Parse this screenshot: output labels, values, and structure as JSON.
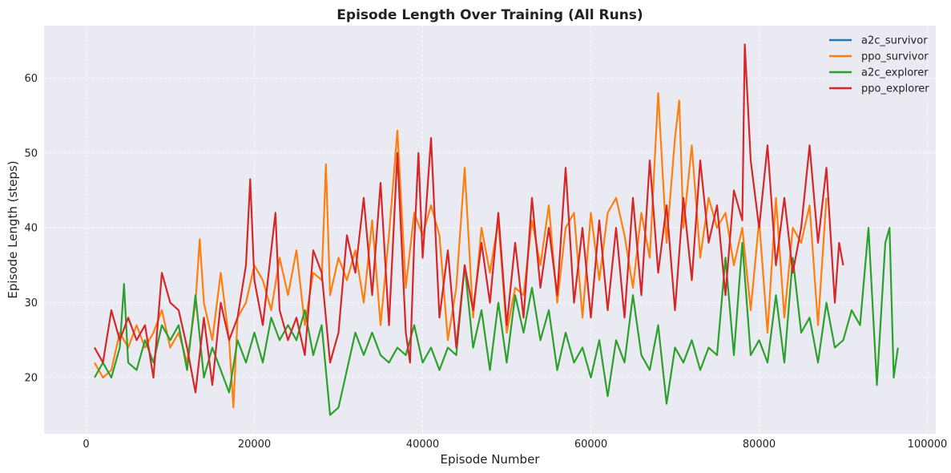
{
  "chart_data": {
    "type": "line",
    "title": "Episode Length Over Training (All Runs)",
    "xlabel": "Episode Number",
    "ylabel": "Episode Length (steps)",
    "xlim": [
      -5000,
      101000
    ],
    "ylim": [
      12.5,
      67
    ],
    "xticks": [
      0,
      20000,
      40000,
      60000,
      80000,
      100000
    ],
    "xtick_labels": [
      "0",
      "20000",
      "40000",
      "60000",
      "80000",
      "100000"
    ],
    "yticks": [
      20,
      30,
      40,
      50,
      60
    ],
    "ytick_labels": [
      "20",
      "30",
      "40",
      "50",
      "60"
    ],
    "grid": true,
    "legend_position": "top-right",
    "series": [
      {
        "name": "a2c_survivor",
        "color": "#1f77b4",
        "points": []
      },
      {
        "name": "ppo_survivor",
        "color": "#ff7f0e",
        "points": [
          [
            1000,
            22
          ],
          [
            2000,
            20
          ],
          [
            3000,
            21
          ],
          [
            4000,
            26
          ],
          [
            5000,
            24
          ],
          [
            6000,
            27
          ],
          [
            7000,
            24
          ],
          [
            8000,
            26
          ],
          [
            9000,
            29
          ],
          [
            10000,
            24
          ],
          [
            11000,
            26
          ],
          [
            12000,
            22
          ],
          [
            13000,
            30
          ],
          [
            13500,
            38.5
          ],
          [
            14000,
            30
          ],
          [
            15000,
            25
          ],
          [
            16000,
            34
          ],
          [
            17000,
            25
          ],
          [
            17500,
            16
          ],
          [
            18000,
            28
          ],
          [
            19000,
            30
          ],
          [
            20000,
            35
          ],
          [
            21000,
            33
          ],
          [
            22000,
            29
          ],
          [
            23000,
            36
          ],
          [
            24000,
            31
          ],
          [
            25000,
            37
          ],
          [
            26000,
            27
          ],
          [
            27000,
            34
          ],
          [
            28000,
            33
          ],
          [
            28500,
            48.5
          ],
          [
            29000,
            31
          ],
          [
            30000,
            36
          ],
          [
            31000,
            33
          ],
          [
            32000,
            37
          ],
          [
            33000,
            30
          ],
          [
            34000,
            41
          ],
          [
            35000,
            27
          ],
          [
            36000,
            39
          ],
          [
            37000,
            53
          ],
          [
            38000,
            32
          ],
          [
            39000,
            42
          ],
          [
            40000,
            39
          ],
          [
            41000,
            43
          ],
          [
            42000,
            39
          ],
          [
            43000,
            25
          ],
          [
            44000,
            32
          ],
          [
            45000,
            48
          ],
          [
            46000,
            28
          ],
          [
            47000,
            40
          ],
          [
            48000,
            34
          ],
          [
            49000,
            41
          ],
          [
            50000,
            26
          ],
          [
            51000,
            32
          ],
          [
            52000,
            31
          ],
          [
            53000,
            41
          ],
          [
            54000,
            35
          ],
          [
            55000,
            43
          ],
          [
            56000,
            30
          ],
          [
            57000,
            40
          ],
          [
            58000,
            42
          ],
          [
            59000,
            28
          ],
          [
            60000,
            42
          ],
          [
            61000,
            33
          ],
          [
            62000,
            42
          ],
          [
            63000,
            44
          ],
          [
            64000,
            39
          ],
          [
            65000,
            32
          ],
          [
            66000,
            42
          ],
          [
            67000,
            36
          ],
          [
            68000,
            58
          ],
          [
            69000,
            38
          ],
          [
            70000,
            52
          ],
          [
            70500,
            57
          ],
          [
            71000,
            40
          ],
          [
            72000,
            51
          ],
          [
            73000,
            36
          ],
          [
            74000,
            44
          ],
          [
            75000,
            40
          ],
          [
            76000,
            42
          ],
          [
            77000,
            35
          ],
          [
            78000,
            40
          ],
          [
            79000,
            29
          ],
          [
            80000,
            41
          ],
          [
            81000,
            26
          ],
          [
            82000,
            44
          ],
          [
            83000,
            28
          ],
          [
            84000,
            40
          ],
          [
            85000,
            38
          ],
          [
            86000,
            43
          ],
          [
            87000,
            27
          ],
          [
            88000,
            44
          ]
        ]
      },
      {
        "name": "a2c_explorer",
        "color": "#2ca02c",
        "points": [
          [
            1000,
            20
          ],
          [
            2000,
            22
          ],
          [
            3000,
            20
          ],
          [
            4000,
            24
          ],
          [
            4500,
            32.5
          ],
          [
            5000,
            22
          ],
          [
            6000,
            21
          ],
          [
            7000,
            25
          ],
          [
            8000,
            22
          ],
          [
            9000,
            27
          ],
          [
            10000,
            25
          ],
          [
            11000,
            27
          ],
          [
            12000,
            21
          ],
          [
            13000,
            31
          ],
          [
            14000,
            20
          ],
          [
            15000,
            24
          ],
          [
            16000,
            21
          ],
          [
            17000,
            18
          ],
          [
            18000,
            25
          ],
          [
            19000,
            22
          ],
          [
            20000,
            26
          ],
          [
            21000,
            22
          ],
          [
            22000,
            28
          ],
          [
            23000,
            25
          ],
          [
            24000,
            27
          ],
          [
            25000,
            25
          ],
          [
            26000,
            29
          ],
          [
            27000,
            23
          ],
          [
            28000,
            27
          ],
          [
            29000,
            15
          ],
          [
            30000,
            16
          ],
          [
            31000,
            21
          ],
          [
            32000,
            26
          ],
          [
            33000,
            23
          ],
          [
            34000,
            26
          ],
          [
            35000,
            23
          ],
          [
            36000,
            22
          ],
          [
            37000,
            24
          ],
          [
            38000,
            23
          ],
          [
            39000,
            27
          ],
          [
            40000,
            22
          ],
          [
            41000,
            24
          ],
          [
            42000,
            21
          ],
          [
            43000,
            24
          ],
          [
            44000,
            23
          ],
          [
            45000,
            35
          ],
          [
            46000,
            24
          ],
          [
            47000,
            29
          ],
          [
            48000,
            21
          ],
          [
            49000,
            30
          ],
          [
            50000,
            22
          ],
          [
            51000,
            31
          ],
          [
            52000,
            26
          ],
          [
            53000,
            32
          ],
          [
            54000,
            25
          ],
          [
            55000,
            29
          ],
          [
            56000,
            21
          ],
          [
            57000,
            26
          ],
          [
            58000,
            22
          ],
          [
            59000,
            24
          ],
          [
            60000,
            20
          ],
          [
            61000,
            25
          ],
          [
            62000,
            17.5
          ],
          [
            63000,
            25
          ],
          [
            64000,
            22
          ],
          [
            65000,
            31
          ],
          [
            66000,
            23
          ],
          [
            67000,
            21
          ],
          [
            68000,
            27
          ],
          [
            69000,
            16.5
          ],
          [
            70000,
            24
          ],
          [
            71000,
            22
          ],
          [
            72000,
            25
          ],
          [
            73000,
            21
          ],
          [
            74000,
            24
          ],
          [
            75000,
            23
          ],
          [
            76000,
            36
          ],
          [
            77000,
            23
          ],
          [
            78000,
            38
          ],
          [
            79000,
            23
          ],
          [
            80000,
            25
          ],
          [
            81000,
            22
          ],
          [
            82000,
            31
          ],
          [
            83000,
            22
          ],
          [
            84000,
            36
          ],
          [
            85000,
            26
          ],
          [
            86000,
            28
          ],
          [
            87000,
            22
          ],
          [
            88000,
            30
          ],
          [
            89000,
            24
          ],
          [
            90000,
            25
          ],
          [
            91000,
            29
          ],
          [
            92000,
            27
          ],
          [
            93000,
            40
          ],
          [
            94000,
            19
          ],
          [
            95000,
            38
          ],
          [
            95500,
            40
          ],
          [
            96000,
            20
          ],
          [
            96500,
            24
          ]
        ]
      },
      {
        "name": "ppo_explorer",
        "color": "#d62728",
        "points": [
          [
            1000,
            24
          ],
          [
            2000,
            22
          ],
          [
            3000,
            29
          ],
          [
            4000,
            25
          ],
          [
            5000,
            28
          ],
          [
            6000,
            25
          ],
          [
            7000,
            27
          ],
          [
            8000,
            20
          ],
          [
            9000,
            34
          ],
          [
            10000,
            30
          ],
          [
            11000,
            29
          ],
          [
            12000,
            24
          ],
          [
            13000,
            18
          ],
          [
            14000,
            28
          ],
          [
            15000,
            19
          ],
          [
            16000,
            30
          ],
          [
            17000,
            25
          ],
          [
            18000,
            28
          ],
          [
            19000,
            35
          ],
          [
            19500,
            46.5
          ],
          [
            20000,
            33
          ],
          [
            21000,
            27
          ],
          [
            22000,
            37
          ],
          [
            22500,
            42
          ],
          [
            23000,
            29
          ],
          [
            24000,
            25
          ],
          [
            25000,
            28
          ],
          [
            26000,
            23
          ],
          [
            27000,
            37
          ],
          [
            28000,
            34
          ],
          [
            29000,
            22
          ],
          [
            30000,
            26
          ],
          [
            31000,
            39
          ],
          [
            32000,
            34
          ],
          [
            33000,
            44
          ],
          [
            34000,
            31
          ],
          [
            35000,
            46
          ],
          [
            36000,
            27
          ],
          [
            37000,
            50
          ],
          [
            38000,
            26
          ],
          [
            38500,
            22
          ],
          [
            39000,
            38
          ],
          [
            39500,
            50
          ],
          [
            40000,
            36
          ],
          [
            41000,
            52
          ],
          [
            42000,
            28
          ],
          [
            43000,
            37
          ],
          [
            44000,
            24
          ],
          [
            45000,
            35
          ],
          [
            46000,
            29
          ],
          [
            47000,
            38
          ],
          [
            48000,
            30
          ],
          [
            49000,
            42
          ],
          [
            50000,
            27
          ],
          [
            51000,
            38
          ],
          [
            52000,
            28
          ],
          [
            53000,
            44
          ],
          [
            54000,
            32
          ],
          [
            55000,
            40
          ],
          [
            56000,
            31
          ],
          [
            57000,
            48
          ],
          [
            58000,
            30
          ],
          [
            59000,
            40
          ],
          [
            60000,
            28
          ],
          [
            61000,
            41
          ],
          [
            62000,
            29
          ],
          [
            63000,
            40
          ],
          [
            64000,
            28
          ],
          [
            65000,
            44
          ],
          [
            66000,
            31
          ],
          [
            67000,
            49
          ],
          [
            68000,
            34
          ],
          [
            69000,
            43
          ],
          [
            70000,
            29
          ],
          [
            71000,
            44
          ],
          [
            72000,
            33
          ],
          [
            73000,
            49
          ],
          [
            74000,
            38
          ],
          [
            75000,
            43
          ],
          [
            76000,
            31
          ],
          [
            77000,
            45
          ],
          [
            78000,
            41
          ],
          [
            78300,
            64.5
          ],
          [
            79000,
            49
          ],
          [
            80000,
            40
          ],
          [
            81000,
            51
          ],
          [
            82000,
            35
          ],
          [
            83000,
            44
          ],
          [
            84000,
            34
          ],
          [
            85000,
            40
          ],
          [
            86000,
            51
          ],
          [
            87000,
            38
          ],
          [
            88000,
            48
          ],
          [
            89000,
            30
          ],
          [
            89500,
            38
          ],
          [
            90000,
            35
          ]
        ]
      }
    ]
  }
}
